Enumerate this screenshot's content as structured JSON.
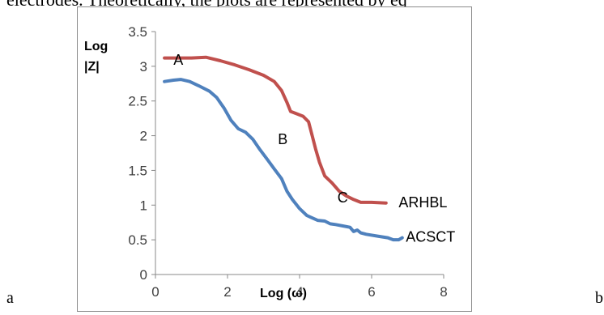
{
  "page": {
    "top_text": "electrodes. Theoretically, the plots are represented by eq",
    "left_letter": "a",
    "right_letter": "b"
  },
  "chart_data": {
    "type": "line",
    "title": "",
    "xlabel": "Log (ω)",
    "ylabel_line1": "Log",
    "ylabel_line2": "|Z|",
    "xlim": [
      0,
      8
    ],
    "ylim": [
      0,
      3.5
    ],
    "xticks": [
      0,
      2,
      4,
      6,
      8
    ],
    "xtick_labels": [
      "0",
      "2",
      "4",
      "6",
      "8"
    ],
    "yticks": [
      0,
      0.5,
      1,
      1.5,
      2,
      2.5,
      3,
      3.5
    ],
    "ytick_labels": [
      "0",
      "0.5",
      "1",
      "1.5",
      "2",
      "2.5",
      "3",
      "3.5"
    ],
    "grid": false,
    "series": [
      {
        "name": "ARHBL",
        "color": "#c0504d",
        "points": [
          [
            0.25,
            3.12
          ],
          [
            0.6,
            3.12
          ],
          [
            1.0,
            3.12
          ],
          [
            1.4,
            3.13
          ],
          [
            1.8,
            3.08
          ],
          [
            2.2,
            3.02
          ],
          [
            2.6,
            2.95
          ],
          [
            3.0,
            2.87
          ],
          [
            3.3,
            2.78
          ],
          [
            3.5,
            2.65
          ],
          [
            3.65,
            2.48
          ],
          [
            3.75,
            2.35
          ],
          [
            3.9,
            2.32
          ],
          [
            4.1,
            2.28
          ],
          [
            4.25,
            2.2
          ],
          [
            4.35,
            2.0
          ],
          [
            4.45,
            1.8
          ],
          [
            4.55,
            1.62
          ],
          [
            4.7,
            1.42
          ],
          [
            4.9,
            1.32
          ],
          [
            5.1,
            1.2
          ],
          [
            5.3,
            1.13
          ],
          [
            5.5,
            1.08
          ],
          [
            5.7,
            1.04
          ],
          [
            6.0,
            1.04
          ],
          [
            6.4,
            1.03
          ]
        ]
      },
      {
        "name": "ACSCT",
        "color": "#4f81bd",
        "points": [
          [
            0.25,
            2.78
          ],
          [
            0.5,
            2.8
          ],
          [
            0.7,
            2.81
          ],
          [
            0.95,
            2.78
          ],
          [
            1.2,
            2.72
          ],
          [
            1.5,
            2.64
          ],
          [
            1.7,
            2.55
          ],
          [
            1.9,
            2.4
          ],
          [
            2.1,
            2.22
          ],
          [
            2.3,
            2.1
          ],
          [
            2.5,
            2.05
          ],
          [
            2.7,
            1.95
          ],
          [
            2.9,
            1.8
          ],
          [
            3.1,
            1.66
          ],
          [
            3.3,
            1.52
          ],
          [
            3.5,
            1.38
          ],
          [
            3.65,
            1.2
          ],
          [
            3.8,
            1.08
          ],
          [
            4.0,
            0.95
          ],
          [
            4.2,
            0.85
          ],
          [
            4.5,
            0.78
          ],
          [
            4.7,
            0.77
          ],
          [
            4.85,
            0.73
          ],
          [
            5.0,
            0.72
          ],
          [
            5.2,
            0.7
          ],
          [
            5.4,
            0.68
          ],
          [
            5.5,
            0.62
          ],
          [
            5.6,
            0.64
          ],
          [
            5.7,
            0.6
          ],
          [
            5.85,
            0.58
          ],
          [
            6.2,
            0.55
          ],
          [
            6.45,
            0.53
          ],
          [
            6.6,
            0.5
          ],
          [
            6.75,
            0.5
          ],
          [
            6.85,
            0.53
          ]
        ]
      }
    ],
    "annotations": [
      {
        "text": "A",
        "x": 0.5,
        "y": 3.02
      },
      {
        "text": "B",
        "x": 3.4,
        "y": 1.88
      },
      {
        "text": "C",
        "x": 5.05,
        "y": 1.04
      },
      {
        "text": "ARHBL",
        "x": 6.75,
        "y": 0.97
      },
      {
        "text": "ACSCT",
        "x": 6.95,
        "y": 0.47
      }
    ]
  }
}
